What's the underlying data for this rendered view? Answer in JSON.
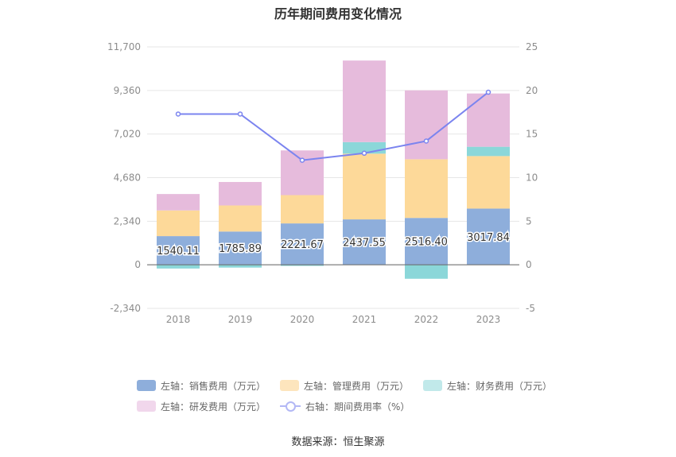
{
  "title": "历年期间费用变化情况",
  "source": "数据来源：恒生聚源",
  "chart_data": {
    "type": "bar",
    "categories": [
      "2018",
      "2019",
      "2020",
      "2021",
      "2022",
      "2023"
    ],
    "left_axis": {
      "ylim": [
        -2340,
        11700
      ],
      "ticks": [
        "-2,340",
        "0",
        "2,340",
        "4,680",
        "7,020",
        "9,360",
        "11,700"
      ]
    },
    "right_axis": {
      "ylim": [
        -5,
        25
      ],
      "ticks": [
        "-5",
        "0",
        "5",
        "10",
        "15",
        "20",
        "25"
      ]
    },
    "series": [
      {
        "name": "左轴：销售费用（万元）",
        "kind": "bar",
        "stack": true,
        "color": "#8eaedb",
        "values": [
          1540.11,
          1785.89,
          2221.67,
          2437.55,
          2516.4,
          3017.84
        ],
        "labels": [
          "1540.11",
          "1785.89",
          "2221.67",
          "2437.55",
          "2516.40",
          "3017.84"
        ]
      },
      {
        "name": "左轴：管理费用（万元）",
        "kind": "bar",
        "stack": true,
        "color": "#fdd999",
        "values": [
          1380,
          1400,
          1520,
          3530,
          3150,
          2820
        ]
      },
      {
        "name": "左轴：财务费用（万元）",
        "kind": "bar",
        "stack": true,
        "color": "#8bd7d9",
        "values": [
          -200,
          -150,
          -60,
          620,
          -750,
          500
        ]
      },
      {
        "name": "左轴：研发费用（万元）",
        "kind": "bar",
        "stack": true,
        "color": "#e6bbdc",
        "values": [
          880,
          1260,
          2400,
          4380,
          3700,
          2860
        ]
      },
      {
        "name": "右轴：期间费用率（%）",
        "kind": "line",
        "axis": "right",
        "color": "#7b84ef",
        "values": [
          17.3,
          17.3,
          12.0,
          12.8,
          14.2,
          19.8
        ]
      }
    ],
    "legend_position": "bottom",
    "grid": true
  },
  "legend": {
    "row1": [
      "左轴：销售费用（万元）",
      "左轴：管理费用（万元）",
      "左轴：财务费用（万元）"
    ],
    "row2": [
      "左轴：研发费用（万元）",
      "右轴：期间费用率（%）"
    ],
    "swatch_colors": [
      "#8eaedb",
      "#fde5bd",
      "#c1e9ea",
      "#f1d7ec"
    ]
  }
}
